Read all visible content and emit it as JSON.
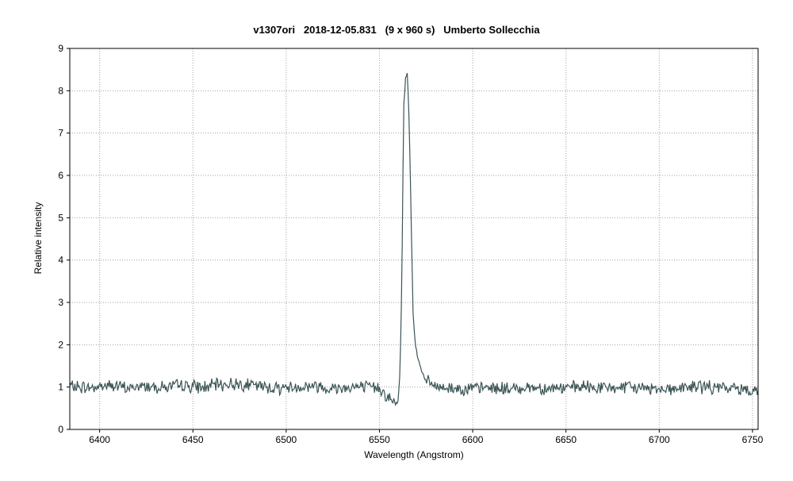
{
  "chart_data": {
    "type": "line",
    "title": "v1307ori   2018-12-05.831   (9 x 960 s)   Umberto Sollecchia",
    "xlabel": "Wavelength (Angstrom)",
    "ylabel": "Relative intensity",
    "xlim": [
      6384,
      6753
    ],
    "ylim": [
      0,
      9
    ],
    "xticks": [
      6400,
      6450,
      6500,
      6550,
      6600,
      6650,
      6700,
      6750
    ],
    "yticks": [
      0,
      1,
      2,
      3,
      4,
      5,
      6,
      7,
      8,
      9
    ],
    "grid": true,
    "line_color": "#3b5455",
    "series": [
      {
        "x": [
          6384,
          6395,
          6405,
          6415,
          6425,
          6435,
          6445,
          6455,
          6465,
          6475,
          6485,
          6495,
          6505,
          6515,
          6525,
          6535,
          6545,
          6550,
          6553,
          6556,
          6558,
          6560,
          6561,
          6562,
          6563,
          6564,
          6565,
          6566,
          6567,
          6568,
          6569,
          6570,
          6572,
          6575,
          6580,
          6590,
          6600,
          6610,
          6620,
          6630,
          6640,
          6650,
          6660,
          6670,
          6680,
          6690,
          6700,
          6710,
          6720,
          6730,
          6740,
          6753
        ],
        "y": [
          1.02,
          0.98,
          1.05,
          0.97,
          1.03,
          1.0,
          1.04,
          0.99,
          1.06,
          1.08,
          1.02,
          0.98,
          1.0,
          1.03,
          0.97,
          1.01,
          0.99,
          1.0,
          0.82,
          0.72,
          0.6,
          0.65,
          1.3,
          3.5,
          7.6,
          8.3,
          8.45,
          7.2,
          5.0,
          2.8,
          2.1,
          1.8,
          1.45,
          1.15,
          1.0,
          0.97,
          0.96,
          0.99,
          0.95,
          1.0,
          0.97,
          0.98,
          1.0,
          0.98,
          0.99,
          0.98,
          0.97,
          0.96,
          1.02,
          0.98,
          0.97,
          0.93
        ]
      }
    ]
  }
}
